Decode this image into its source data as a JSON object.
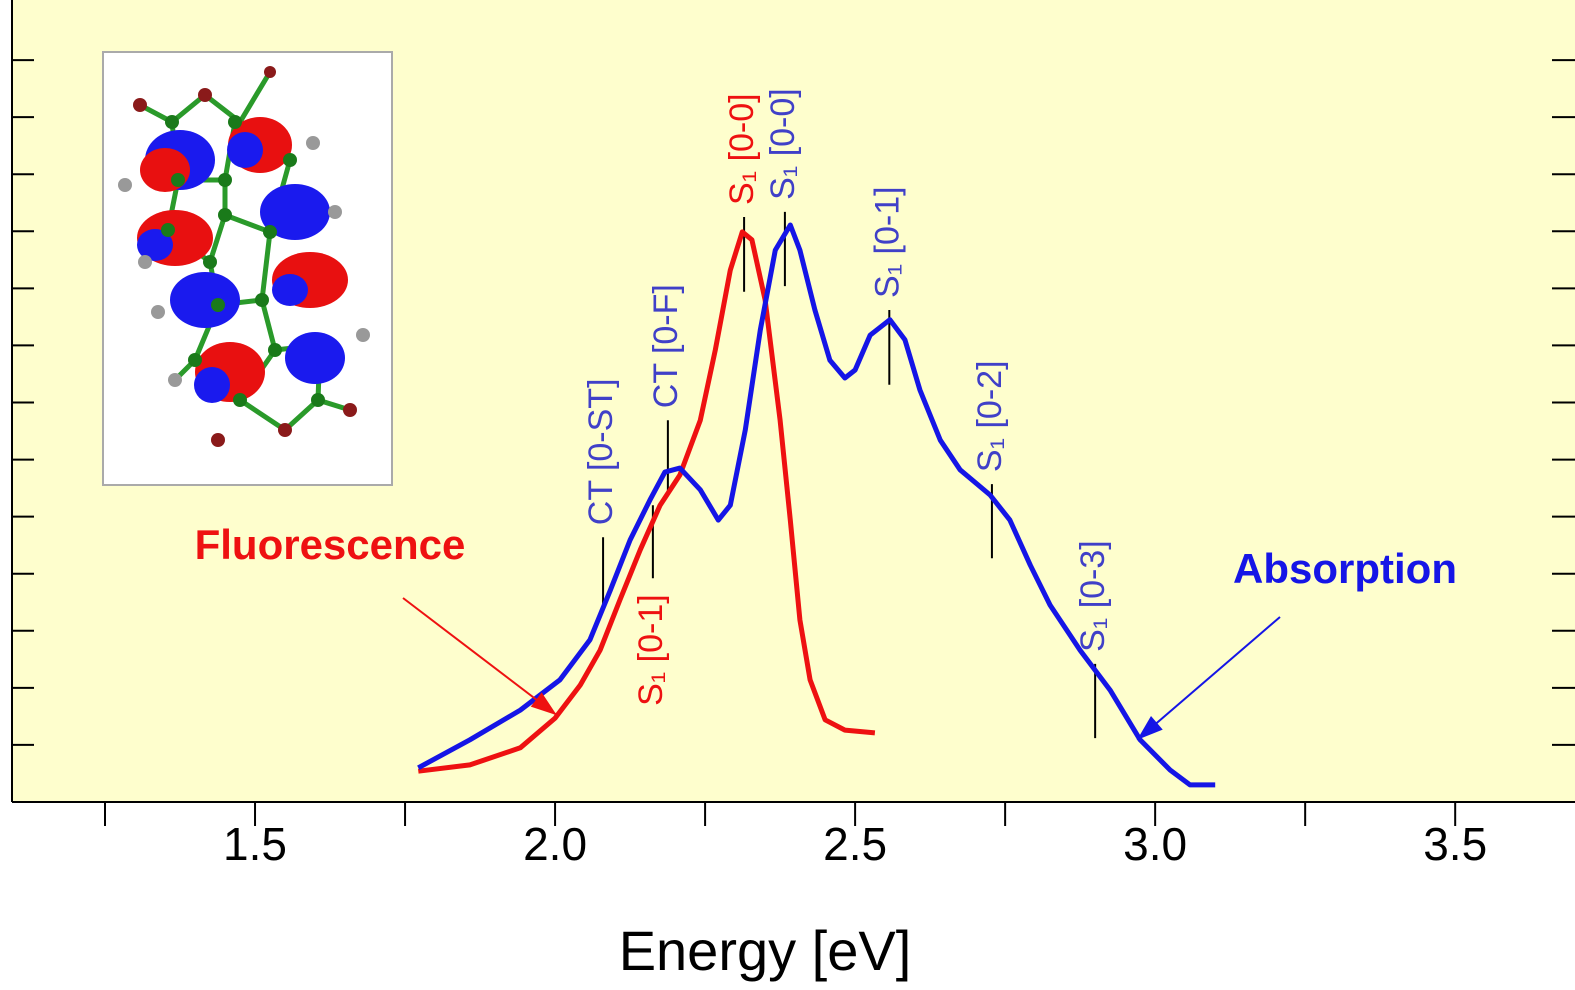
{
  "chart_data": {
    "type": "line",
    "xlabel": "Energy [eV]",
    "xlim": [
      1.095,
      3.688
    ],
    "ylim": [
      0,
      14
    ],
    "xticks": [
      {
        "value": 1.5,
        "label": "1.5"
      },
      {
        "value": 2,
        "label": "2.0"
      },
      {
        "value": 2.5,
        "label": "2.5"
      },
      {
        "value": 3,
        "label": "3.0"
      },
      {
        "value": 3.5,
        "label": "3.5"
      }
    ],
    "xminorticks": [
      1.25,
      1.75,
      2.25,
      2.75,
      3.25
    ],
    "yminorticks": [
      1,
      2,
      3,
      4,
      5,
      6,
      7,
      8,
      9,
      10,
      11,
      12,
      13
    ],
    "background": "#fefecd",
    "series": [
      {
        "name": "Absorption",
        "color": "#1515e6",
        "x": [
          1.772,
          1.858,
          1.942,
          2.008,
          2.058,
          2.092,
          2.125,
          2.158,
          2.183,
          2.208,
          2.242,
          2.272,
          2.292,
          2.317,
          2.342,
          2.367,
          2.392,
          2.408,
          2.433,
          2.458,
          2.483,
          2.5,
          2.525,
          2.558,
          2.583,
          2.608,
          2.642,
          2.675,
          2.725,
          2.758,
          2.792,
          2.825,
          2.875,
          2.925,
          2.975,
          3.025,
          3.058,
          3.1
        ],
        "values": [
          0.6,
          1.09,
          1.61,
          2.14,
          2.84,
          3.71,
          4.59,
          5.29,
          5.78,
          5.85,
          5.47,
          4.94,
          5.2,
          6.52,
          8.27,
          9.67,
          10.11,
          9.67,
          8.62,
          7.74,
          7.43,
          7.57,
          8.18,
          8.45,
          8.1,
          7.22,
          6.34,
          5.82,
          5.38,
          4.94,
          4.15,
          3.45,
          2.66,
          1.96,
          1.09,
          0.56,
          0.3,
          0.3
        ]
      },
      {
        "name": "Fluorescence",
        "color": "#ee1111",
        "x": [
          1.772,
          1.858,
          1.942,
          2.0,
          2.042,
          2.075,
          2.108,
          2.142,
          2.175,
          2.208,
          2.242,
          2.267,
          2.292,
          2.312,
          2.328,
          2.35,
          2.375,
          2.392,
          2.408,
          2.425,
          2.45,
          2.483,
          2.533
        ],
        "values": [
          0.54,
          0.65,
          0.95,
          1.47,
          2.05,
          2.66,
          3.54,
          4.42,
          5.2,
          5.73,
          6.69,
          7.92,
          9.32,
          9.99,
          9.85,
          8.8,
          6.69,
          4.94,
          3.19,
          2.14,
          1.44,
          1.26,
          1.21
        ]
      }
    ],
    "markers": [
      {
        "label": "CT [0-ST]",
        "x": 2.08,
        "y": [
          3.36,
          4.64
        ],
        "color": "#4040c8",
        "position": "above"
      },
      {
        "label": "S₁ [0-1]",
        "x": 2.163,
        "y": [
          3.92,
          5.2
        ],
        "color": "#ee1111",
        "position": "below"
      },
      {
        "label": "CT [0-F]",
        "x": 2.188,
        "y": [
          5.38,
          6.69
        ],
        "color": "#4040c8",
        "position": "above"
      },
      {
        "label": "S₁ [0-0]",
        "x": 2.315,
        "y": [
          8.94,
          10.25
        ],
        "color": "#ee1111",
        "position": "above"
      },
      {
        "label": "S₁ [0-0]",
        "x": 2.383,
        "y": [
          9.04,
          10.34
        ],
        "color": "#4040c8",
        "position": "above"
      },
      {
        "label": "S₁ [0-1]",
        "x": 2.557,
        "y": [
          7.31,
          8.62
        ],
        "color": "#4040c8",
        "position": "above"
      },
      {
        "label": "S₁ [0-2]",
        "x": 2.728,
        "y": [
          4.27,
          5.57
        ],
        "color": "#4040c8",
        "position": "above"
      },
      {
        "label": "S₁ [0-3]",
        "x": 2.9,
        "y": [
          1.12,
          2.42
        ],
        "color": "#4040c8",
        "position": "above"
      }
    ],
    "annotations": [
      {
        "text": "Fluorescence",
        "color": "#ee1111",
        "xy": [
          2.003,
          1.52
        ]
      },
      {
        "text": "Absorption",
        "color": "#1515e6",
        "xy": [
          2.97,
          1.09
        ]
      }
    ]
  }
}
